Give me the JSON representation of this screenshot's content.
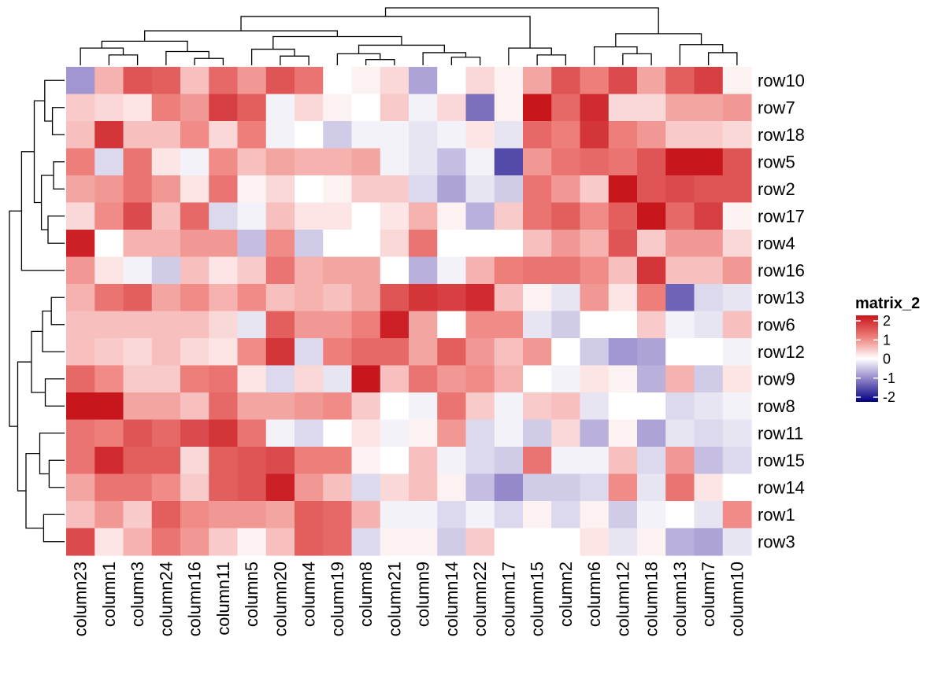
{
  "chart_data": {
    "type": "heatmap",
    "title": "",
    "xlabel": "",
    "ylabel": "",
    "columns": [
      "column23",
      "column1",
      "column3",
      "column24",
      "column16",
      "column11",
      "column5",
      "column20",
      "column4",
      "column19",
      "column8",
      "column21",
      "column9",
      "column14",
      "column22",
      "column17",
      "column15",
      "column2",
      "column6",
      "column12",
      "column18",
      "column13",
      "column7",
      "column10"
    ],
    "rows": [
      "row10",
      "row7",
      "row18",
      "row5",
      "row2",
      "row17",
      "row4",
      "row16",
      "row13",
      "row6",
      "row12",
      "row9",
      "row8",
      "row11",
      "row15",
      "row14",
      "row1",
      "row3"
    ],
    "values": [
      [
        -0.8,
        0.6,
        1.4,
        1.3,
        0.5,
        1.2,
        0.8,
        1.4,
        1.1,
        0.0,
        0.1,
        0.3,
        -0.7,
        0.0,
        0.3,
        0.1,
        0.7,
        1.4,
        1.0,
        1.5,
        0.7,
        1.3,
        1.6,
        0.1
      ],
      [
        0.4,
        0.3,
        0.2,
        1.0,
        0.8,
        1.6,
        1.3,
        -0.1,
        0.3,
        0.1,
        0.0,
        0.4,
        -0.1,
        0.3,
        -1.1,
        0.1,
        2.1,
        1.2,
        1.8,
        0.3,
        0.3,
        0.7,
        0.7,
        0.8
      ],
      [
        0.5,
        1.7,
        0.5,
        0.5,
        0.9,
        0.3,
        1.0,
        -0.1,
        0.0,
        -0.4,
        -0.1,
        -0.1,
        -0.2,
        -0.1,
        0.2,
        -0.2,
        1.2,
        1.0,
        1.7,
        1.0,
        0.8,
        0.4,
        0.4,
        0.3
      ],
      [
        1.0,
        -0.3,
        1.1,
        0.2,
        -0.1,
        0.9,
        0.5,
        0.7,
        0.6,
        0.6,
        0.7,
        -0.1,
        -0.2,
        -0.5,
        -0.1,
        -1.4,
        0.8,
        1.1,
        1.2,
        1.1,
        1.4,
        2.1,
        2.1,
        1.4
      ],
      [
        0.7,
        0.8,
        1.1,
        0.8,
        0.2,
        1.1,
        0.1,
        0.3,
        0.0,
        0.1,
        0.4,
        0.4,
        -0.3,
        -0.7,
        -0.2,
        -0.4,
        1.1,
        0.8,
        0.4,
        2.1,
        1.4,
        1.5,
        1.4,
        1.4
      ],
      [
        0.3,
        0.9,
        1.5,
        0.5,
        1.2,
        -0.3,
        -0.1,
        0.5,
        0.2,
        0.2,
        0.0,
        0.2,
        0.6,
        0.1,
        -0.6,
        0.4,
        1.1,
        1.3,
        0.9,
        1.3,
        2.2,
        1.2,
        1.6,
        0.1
      ],
      [
        1.9,
        0.0,
        0.6,
        0.6,
        0.8,
        0.8,
        -0.5,
        0.9,
        -0.4,
        0.0,
        0.0,
        0.3,
        1.1,
        0.0,
        0.0,
        0.0,
        0.5,
        0.8,
        0.6,
        1.4,
        0.4,
        0.8,
        0.8,
        0.3
      ],
      [
        0.8,
        0.2,
        -0.1,
        -0.4,
        0.5,
        0.2,
        0.4,
        1.1,
        0.6,
        0.7,
        0.7,
        0.0,
        -0.6,
        -0.1,
        0.6,
        1.0,
        1.1,
        1.1,
        0.9,
        0.5,
        1.7,
        0.5,
        0.5,
        0.8
      ],
      [
        0.6,
        1.1,
        1.3,
        0.7,
        0.9,
        0.6,
        0.9,
        0.5,
        0.6,
        0.5,
        0.7,
        1.4,
        1.7,
        1.6,
        1.8,
        0.5,
        0.1,
        -0.2,
        0.8,
        0.2,
        1.0,
        -1.2,
        -0.3,
        -0.2
      ],
      [
        0.5,
        0.5,
        0.5,
        0.5,
        0.5,
        0.3,
        -0.2,
        1.3,
        0.8,
        0.8,
        1.0,
        1.9,
        0.7,
        0.0,
        0.9,
        0.9,
        -0.2,
        -0.4,
        0.0,
        0.0,
        0.4,
        -0.1,
        -0.2,
        0.5
      ],
      [
        0.5,
        0.4,
        0.3,
        0.5,
        0.3,
        0.2,
        0.9,
        1.7,
        -0.3,
        1.0,
        1.2,
        1.2,
        0.7,
        1.3,
        0.8,
        0.5,
        0.8,
        0.0,
        -0.4,
        -0.8,
        -0.7,
        0.0,
        0.0,
        -0.1
      ],
      [
        1.2,
        0.9,
        0.4,
        0.4,
        1.0,
        1.1,
        0.2,
        -0.3,
        0.3,
        -0.2,
        2.0,
        0.5,
        1.1,
        0.8,
        0.9,
        0.6,
        0.0,
        -0.1,
        0.2,
        0.1,
        -0.6,
        0.6,
        -0.4,
        0.2
      ],
      [
        2.0,
        2.2,
        0.7,
        0.7,
        0.5,
        1.2,
        0.7,
        0.7,
        0.8,
        0.9,
        0.4,
        0.0,
        -0.1,
        1.1,
        0.4,
        -0.1,
        0.4,
        0.5,
        -0.2,
        0.0,
        0.0,
        -0.3,
        -0.2,
        -0.1
      ],
      [
        1.1,
        1.0,
        1.4,
        1.2,
        1.5,
        1.7,
        1.1,
        -0.1,
        -0.3,
        0.0,
        0.2,
        -0.1,
        0.1,
        0.8,
        -0.3,
        -0.1,
        -0.4,
        0.3,
        -0.6,
        0.1,
        -0.7,
        -0.2,
        -0.3,
        -0.2
      ],
      [
        1.1,
        1.8,
        1.3,
        1.3,
        0.3,
        1.3,
        1.4,
        1.5,
        1.0,
        1.0,
        0.1,
        0.0,
        0.5,
        -0.1,
        -0.3,
        -0.4,
        1.1,
        -0.1,
        -0.1,
        0.5,
        -0.3,
        0.8,
        -0.5,
        -0.3
      ],
      [
        0.7,
        1.1,
        1.1,
        0.9,
        0.4,
        1.3,
        1.4,
        1.9,
        0.8,
        0.5,
        -0.3,
        0.3,
        0.5,
        0.1,
        -0.5,
        -0.9,
        -0.4,
        -0.4,
        -0.3,
        0.9,
        -0.2,
        1.1,
        0.2,
        0.0
      ],
      [
        0.5,
        0.8,
        0.4,
        1.3,
        0.9,
        0.8,
        0.8,
        0.7,
        1.3,
        1.2,
        0.6,
        -0.1,
        -0.1,
        -0.3,
        -0.1,
        -0.3,
        0.1,
        -0.3,
        0.1,
        -0.4,
        -0.1,
        0.0,
        -0.2,
        0.9
      ],
      [
        1.5,
        0.2,
        0.6,
        1.1,
        0.8,
        0.4,
        0.1,
        0.5,
        1.3,
        1.2,
        -0.3,
        0.1,
        0.1,
        -0.4,
        0.4,
        0.0,
        0.0,
        0.0,
        0.2,
        -0.2,
        0.1,
        -0.6,
        -0.7,
        -0.2
      ]
    ],
    "color_scale": {
      "min": -2,
      "mid": 0,
      "max": 2,
      "low_color": "#000080",
      "mid_color": "#ffffff",
      "high_color": "#c8161d"
    },
    "legend": {
      "title": "matrix_2",
      "ticks": [
        2,
        1,
        0,
        -1,
        -2
      ],
      "tick_labels": [
        "2",
        "1",
        "0",
        "-1",
        "-2"
      ],
      "placement": "right"
    },
    "dendrogram": {
      "rows": true,
      "columns": true
    }
  }
}
